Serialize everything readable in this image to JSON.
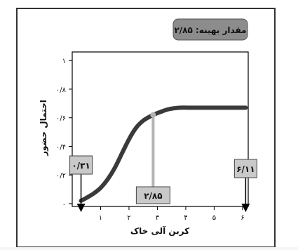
{
  "chart_data": {
    "type": "line",
    "title": "مقدار بهینه: ۲/۸۵",
    "xlabel": "کربن آلی خاک",
    "ylabel": "احتمال حضور",
    "xlim": [
      0,
      6.2
    ],
    "ylim": [
      -0.02,
      1.06
    ],
    "x_ticks": [
      1,
      2,
      3,
      4,
      5,
      6
    ],
    "x_tick_labels": [
      "۱",
      "۲",
      "۳",
      "۴",
      "۵",
      "۶"
    ],
    "y_ticks": [
      0,
      0.2,
      0.4,
      0.6,
      0.8,
      1.0
    ],
    "y_tick_labels": [
      "۰",
      "۰/۲",
      "۰/۴",
      "۰/۶",
      "۰/۸",
      "۱"
    ],
    "series": [
      {
        "x": [
          0.31,
          0.5,
          0.75,
          1.0,
          1.25,
          1.5,
          1.75,
          2.0,
          2.25,
          2.5,
          2.75,
          2.85,
          3.1,
          3.4,
          3.8,
          4.2,
          4.6,
          5.0,
          5.5,
          6.11
        ],
        "y": [
          0.02,
          0.04,
          0.07,
          0.11,
          0.17,
          0.25,
          0.35,
          0.45,
          0.53,
          0.58,
          0.61,
          0.62,
          0.64,
          0.66,
          0.67,
          0.67,
          0.67,
          0.67,
          0.67,
          0.67
        ]
      }
    ],
    "annotations": {
      "optimum": {
        "x": 2.85,
        "y": 0.62,
        "label": "۲/۸۵"
      },
      "min": {
        "x": 0.31,
        "label": "۰/۳۱"
      },
      "max": {
        "x": 6.11,
        "label": "۶/۱۱"
      }
    },
    "colors": {
      "curve": "#3a3a3a",
      "optimum_line": "#b4b4b4",
      "title_box": "#8c8c8c",
      "label_box": "#c9c9c9",
      "axis": "#000000"
    }
  }
}
